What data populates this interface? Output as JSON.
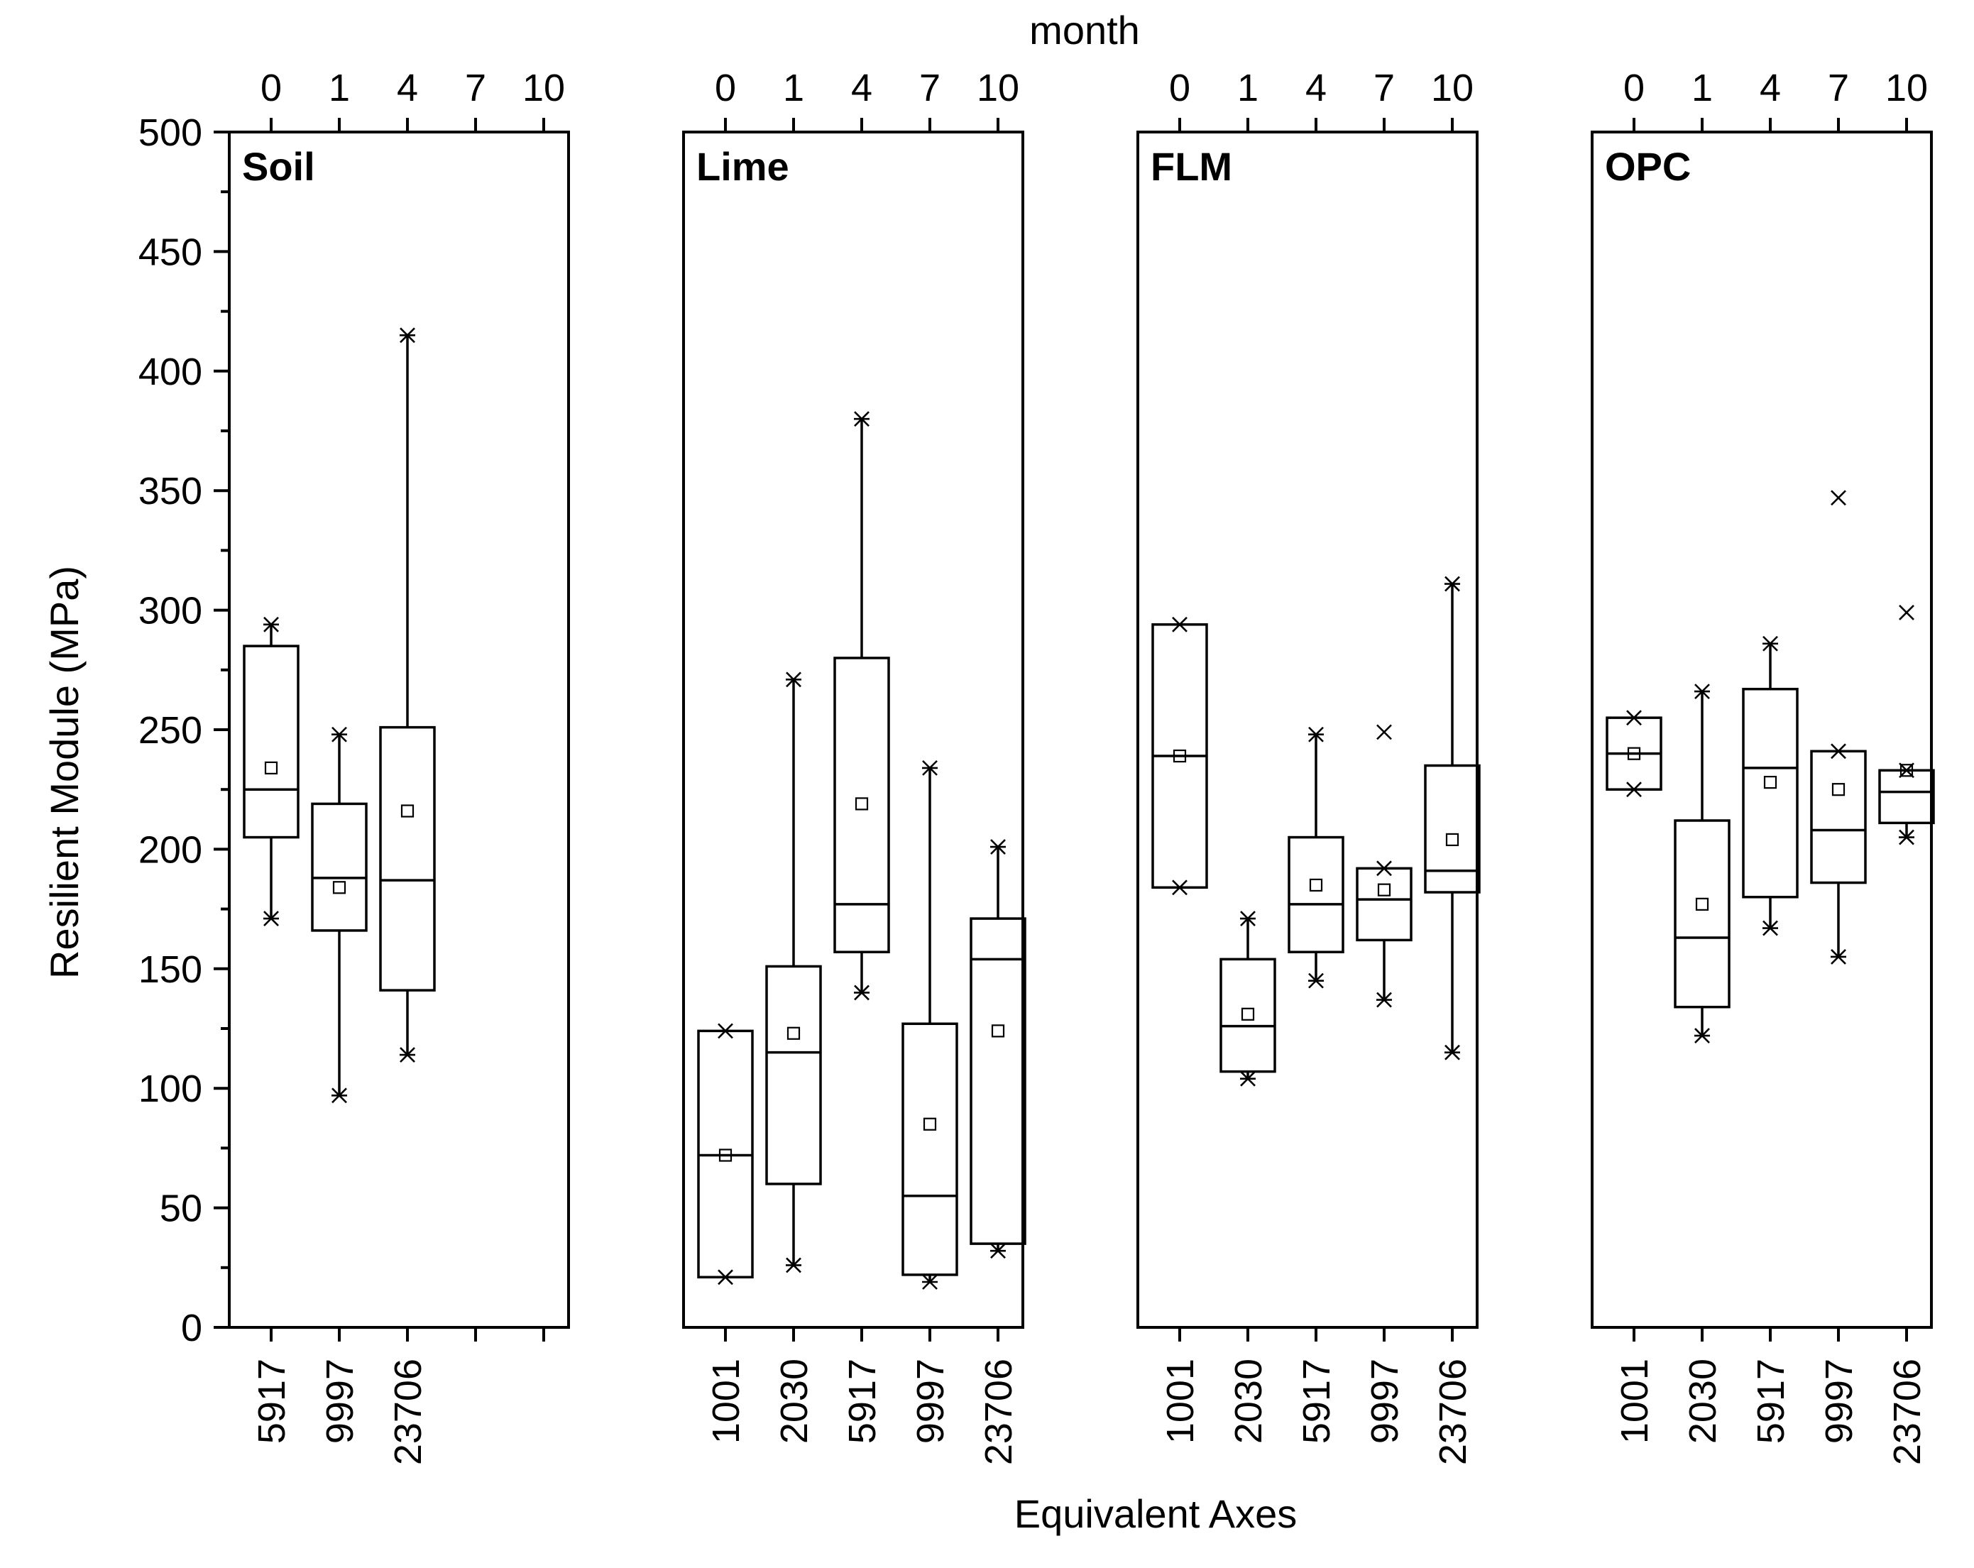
{
  "chart_data": {
    "type": "box",
    "ylabel": "Resilient Module (MPa)",
    "xlabel": "Equivalent Axes",
    "top_xlabel": "month",
    "ylim": [
      0,
      500
    ],
    "yticks": [
      "0",
      "50",
      "100",
      "150",
      "200",
      "250",
      "300",
      "350",
      "400",
      "450",
      "500"
    ],
    "categories": [
      "1001",
      "2030",
      "5917",
      "9997",
      "23706"
    ],
    "month_ticks": [
      "0",
      "1",
      "4",
      "7",
      "10"
    ],
    "panels": [
      {
        "name": "Soil",
        "bottom_labels": [
          "5917",
          "9997",
          "23706"
        ],
        "boxes": [
          {
            "slot": 0,
            "q1": 205,
            "median": 225,
            "q3": 285,
            "mean": 234,
            "whisker_low": 171,
            "whisker_high": 294,
            "outliers": []
          },
          {
            "slot": 1,
            "q1": 166,
            "median": 188,
            "q3": 219,
            "mean": 184,
            "whisker_low": 97,
            "whisker_high": 248,
            "outliers": []
          },
          {
            "slot": 2,
            "q1": 141,
            "median": 187,
            "q3": 251,
            "mean": 216,
            "whisker_low": 114,
            "whisker_high": 415,
            "outliers": []
          }
        ]
      },
      {
        "name": "Lime",
        "bottom_labels": [
          "1001",
          "2030",
          "5917",
          "9997",
          "23706"
        ],
        "boxes": [
          {
            "slot": 0,
            "q1": 21,
            "median": 72,
            "q3": 124,
            "mean": 72,
            "whisker_low": 21,
            "whisker_high": 124,
            "outliers": []
          },
          {
            "slot": 1,
            "q1": 60,
            "median": 115,
            "q3": 151,
            "mean": 123,
            "whisker_low": 26,
            "whisker_high": 271,
            "outliers": []
          },
          {
            "slot": 2,
            "q1": 157,
            "median": 177,
            "q3": 280,
            "mean": 219,
            "whisker_low": 140,
            "whisker_high": 380,
            "outliers": []
          },
          {
            "slot": 3,
            "q1": 22,
            "median": 55,
            "q3": 127,
            "mean": 85,
            "whisker_low": 19,
            "whisker_high": 234,
            "outliers": []
          },
          {
            "slot": 4,
            "q1": 35,
            "median": 154,
            "q3": 171,
            "mean": 124,
            "whisker_low": 32,
            "whisker_high": 201,
            "outliers": []
          }
        ]
      },
      {
        "name": "FLM",
        "bottom_labels": [
          "1001",
          "2030",
          "5917",
          "9997",
          "23706"
        ],
        "boxes": [
          {
            "slot": 0,
            "q1": 184,
            "median": 239,
            "q3": 294,
            "mean": 239,
            "whisker_low": 184,
            "whisker_high": 294,
            "outliers": []
          },
          {
            "slot": 1,
            "q1": 107,
            "median": 126,
            "q3": 154,
            "mean": 131,
            "whisker_low": 104,
            "whisker_high": 171,
            "outliers": []
          },
          {
            "slot": 2,
            "q1": 157,
            "median": 177,
            "q3": 205,
            "mean": 185,
            "whisker_low": 145,
            "whisker_high": 248,
            "outliers": []
          },
          {
            "slot": 3,
            "q1": 162,
            "median": 179,
            "q3": 192,
            "mean": 183,
            "whisker_low": 137,
            "whisker_high": 192,
            "outliers": [
              249
            ]
          },
          {
            "slot": 4,
            "q1": 182,
            "median": 191,
            "q3": 235,
            "mean": 204,
            "whisker_low": 115,
            "whisker_high": 311,
            "outliers": []
          }
        ]
      },
      {
        "name": "OPC",
        "bottom_labels": [
          "1001",
          "2030",
          "5917",
          "9997",
          "23706"
        ],
        "boxes": [
          {
            "slot": 0,
            "q1": 225,
            "median": 240,
            "q3": 255,
            "mean": 240,
            "whisker_low": 225,
            "whisker_high": 255,
            "outliers": []
          },
          {
            "slot": 1,
            "q1": 134,
            "median": 163,
            "q3": 212,
            "mean": 177,
            "whisker_low": 122,
            "whisker_high": 266,
            "outliers": []
          },
          {
            "slot": 2,
            "q1": 180,
            "median": 234,
            "q3": 267,
            "mean": 228,
            "whisker_low": 167,
            "whisker_high": 286,
            "outliers": []
          },
          {
            "slot": 3,
            "q1": 186,
            "median": 208,
            "q3": 241,
            "mean": 225,
            "whisker_low": 155,
            "whisker_high": 241,
            "outliers": [
              347
            ]
          },
          {
            "slot": 4,
            "q1": 211,
            "median": 224,
            "q3": 233,
            "mean": 233,
            "whisker_low": 205,
            "whisker_high": 233,
            "outliers": [
              299
            ]
          }
        ]
      }
    ]
  }
}
